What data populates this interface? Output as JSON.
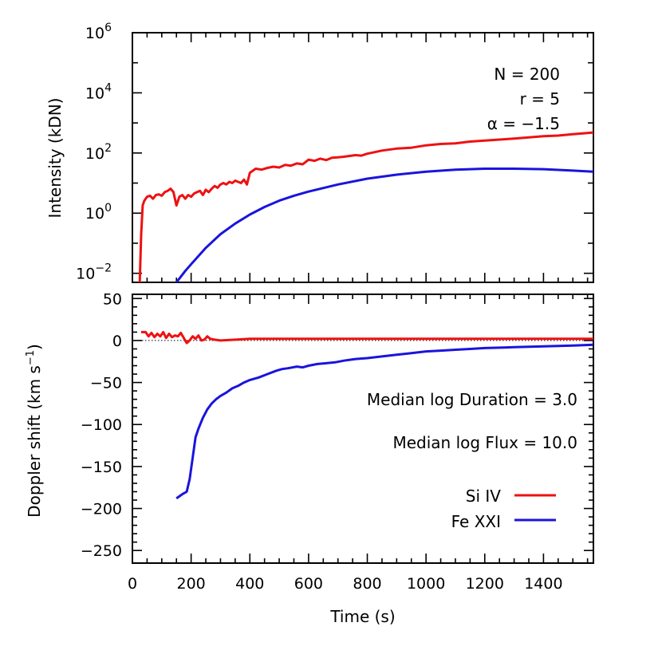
{
  "chart_data": [
    {
      "type": "line",
      "panel": "top",
      "ylabel": "Intensity (kDN)",
      "xlim": [
        0,
        1570
      ],
      "ylim": [
        0.005,
        1000000
      ],
      "yscale": "log",
      "y_ticks": [
        {
          "value": 0.01,
          "base": "10",
          "exp": "−2"
        },
        {
          "value": 1,
          "base": "10",
          "exp": "0"
        },
        {
          "value": 100,
          "base": "10",
          "exp": "2"
        },
        {
          "value": 10000,
          "base": "10",
          "exp": "4"
        },
        {
          "value": 1000000,
          "base": "10",
          "exp": "6"
        }
      ],
      "annotations": [
        "N = 200",
        "r = 5",
        "α = −1.5"
      ],
      "series": [
        {
          "color": "#ee1111",
          "x": [
            25,
            30,
            35,
            40,
            45,
            50,
            60,
            70,
            80,
            90,
            100,
            110,
            120,
            130,
            140,
            150,
            160,
            170,
            180,
            190,
            200,
            210,
            220,
            230,
            240,
            250,
            260,
            270,
            280,
            290,
            300,
            310,
            320,
            330,
            340,
            350,
            360,
            370,
            380,
            390,
            400,
            420,
            440,
            460,
            480,
            500,
            520,
            540,
            560,
            580,
            600,
            620,
            640,
            660,
            680,
            700,
            720,
            740,
            760,
            780,
            800,
            850,
            900,
            950,
            1000,
            1050,
            1100,
            1150,
            1200,
            1250,
            1300,
            1350,
            1400,
            1450,
            1500,
            1550,
            1570
          ],
          "values": [
            0.005,
            0.2,
            1.8,
            2.5,
            3,
            3.5,
            3.8,
            3.0,
            4.0,
            4.2,
            3.8,
            5.0,
            5.5,
            6.5,
            5.0,
            1.8,
            3.5,
            4.0,
            3.0,
            4.0,
            3.5,
            4.5,
            5.0,
            5.5,
            4.0,
            6.0,
            5.0,
            6.5,
            8,
            7,
            9,
            10,
            9,
            11,
            10,
            12,
            11,
            10,
            13,
            9,
            22,
            30,
            28,
            32,
            35,
            33,
            40,
            38,
            45,
            42,
            60,
            55,
            65,
            58,
            70,
            72,
            75,
            80,
            85,
            82,
            95,
            120,
            140,
            150,
            180,
            200,
            210,
            240,
            260,
            280,
            300,
            330,
            360,
            380,
            420,
            460,
            480
          ]
        },
        {
          "color": "#1a14dd",
          "x": [
            150,
            180,
            200,
            250,
            300,
            350,
            400,
            450,
            500,
            550,
            600,
            700,
            800,
            900,
            1000,
            1100,
            1200,
            1300,
            1400,
            1500,
            1570
          ],
          "values": [
            0.005,
            0.012,
            0.02,
            0.07,
            0.2,
            0.45,
            0.9,
            1.6,
            2.6,
            3.8,
            5.2,
            9.0,
            14,
            19,
            24,
            28,
            30,
            30,
            29,
            26,
            24
          ]
        }
      ]
    },
    {
      "type": "line",
      "panel": "bottom",
      "xlabel": "Time (s)",
      "ylabel": "Doppler shift (km s",
      "ylabel_sup": "−1",
      "ylabel_close": ")",
      "xlim": [
        0,
        1570
      ],
      "ylim": [
        -265,
        55
      ],
      "x_ticks": [
        "0",
        "200",
        "400",
        "600",
        "800",
        "1000",
        "1200",
        "1400"
      ],
      "x_tick_values": [
        0,
        200,
        400,
        600,
        800,
        1000,
        1200,
        1400
      ],
      "y_ticks": [
        "50",
        "0",
        "−50",
        "−100",
        "−150",
        "−200",
        "−250"
      ],
      "y_tick_values": [
        50,
        0,
        -50,
        -100,
        -150,
        -200,
        -250
      ],
      "annotations": [
        "Median log Duration = 3.0",
        "Median log Flux = 10.0"
      ],
      "legend_position": "lower-right",
      "series": [
        {
          "name": "Si IV",
          "color": "#ee1111",
          "x": [
            30,
            45,
            55,
            65,
            75,
            85,
            95,
            105,
            115,
            125,
            135,
            145,
            155,
            165,
            175,
            185,
            195,
            205,
            215,
            225,
            235,
            245,
            255,
            265,
            280,
            300,
            350,
            400,
            500,
            600,
            800,
            1000,
            1200,
            1400,
            1570
          ],
          "values": [
            10,
            10,
            5,
            9,
            4,
            8,
            5,
            10,
            3,
            8,
            4,
            6,
            5,
            9,
            3,
            -3,
            0,
            5,
            2,
            6,
            0,
            1,
            5,
            2,
            1,
            0,
            1,
            2,
            2,
            2,
            2,
            2,
            2,
            2,
            2
          ]
        },
        {
          "name": "Fe XXI",
          "color": "#1a14dd",
          "x": [
            150,
            170,
            185,
            195,
            205,
            215,
            225,
            240,
            255,
            270,
            285,
            300,
            320,
            340,
            360,
            380,
            400,
            430,
            460,
            490,
            510,
            530,
            560,
            580,
            600,
            630,
            660,
            690,
            720,
            760,
            800,
            850,
            900,
            950,
            1000,
            1050,
            1100,
            1150,
            1200,
            1250,
            1300,
            1350,
            1400,
            1450,
            1500,
            1570
          ],
          "values": [
            -188,
            -183,
            -180,
            -165,
            -140,
            -115,
            -105,
            -92,
            -82,
            -75,
            -70,
            -66,
            -62,
            -57,
            -54,
            -50,
            -47,
            -44,
            -40,
            -36,
            -34,
            -33,
            -31,
            -32,
            -30,
            -28,
            -27,
            -26,
            -24,
            -22,
            -21,
            -19,
            -17,
            -15,
            -13,
            -12,
            -11,
            -10,
            -9,
            -8.5,
            -8,
            -7.5,
            -7,
            -6.5,
            -6,
            -5
          ]
        }
      ]
    }
  ]
}
